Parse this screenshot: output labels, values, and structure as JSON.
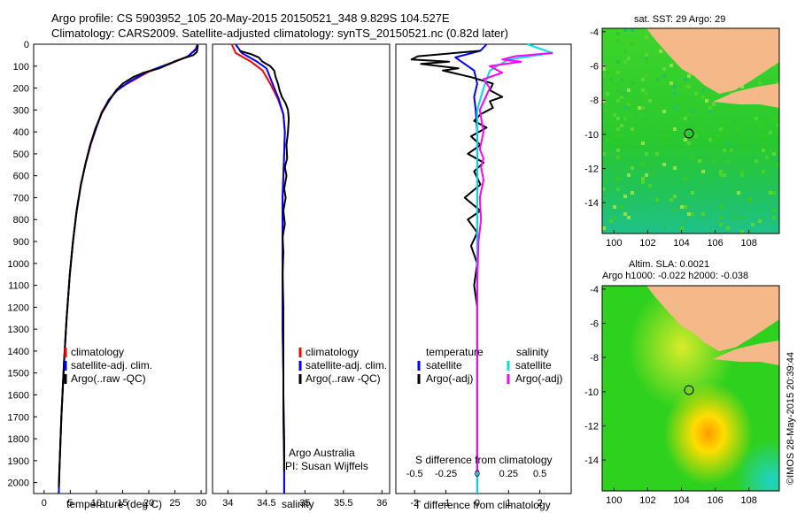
{
  "header": {
    "line1": "Argo profile: CS 5903952_105 20-May-2015 20150521_348 9.829S 104.527E",
    "line2": "Climatology: CARS2009. Satellite-adjusted climatology: synTS_20150521.nc (0.82d later)"
  },
  "colors": {
    "clim": "#ff0000",
    "sat": "#0000ff",
    "argo": "#000000",
    "sat_sal": "#00e0e0",
    "argo_sal": "#ff00ff",
    "land": "#f5b889",
    "map_green": "#2fd11f"
  },
  "depth_axis": {
    "ticks": [
      0,
      100,
      200,
      300,
      400,
      500,
      600,
      700,
      800,
      900,
      1000,
      1100,
      1200,
      1300,
      1400,
      1500,
      1600,
      1700,
      1800,
      1900,
      2000
    ],
    "ylim": [
      0,
      2050
    ]
  },
  "chart_data": [
    {
      "type": "line",
      "id": "temperature",
      "xlabel": "temperature (deg C)",
      "xlim": [
        -2,
        31
      ],
      "xticks": [
        0,
        5,
        10,
        15,
        20,
        25,
        30
      ],
      "legend": [
        "climatology",
        "satellite-adj. clim.",
        "Argo(..raw -QC)"
      ],
      "series": [
        {
          "name": "climatology",
          "points": [
            [
              29.3,
              0
            ],
            [
              29,
              20
            ],
            [
              27.5,
              55
            ],
            [
              24,
              90
            ],
            [
              20,
              125
            ],
            [
              17,
              165
            ],
            [
              14,
              205
            ],
            [
              12.5,
              250
            ],
            [
              11,
              310
            ],
            [
              10,
              380
            ],
            [
              9,
              450
            ],
            [
              8,
              540
            ],
            [
              7,
              640
            ],
            [
              6.2,
              760
            ],
            [
              5.5,
              900
            ],
            [
              4.9,
              1050
            ],
            [
              4.3,
              1250
            ],
            [
              3.8,
              1450
            ],
            [
              3.3,
              1700
            ],
            [
              2.9,
              1950
            ],
            [
              2.8,
              2050
            ]
          ]
        },
        {
          "name": "satellite-adj. clim.",
          "points": [
            [
              29.3,
              0
            ],
            [
              29,
              25
            ],
            [
              27.3,
              58
            ],
            [
              23.5,
              92
            ],
            [
              19.5,
              128
            ],
            [
              16.5,
              168
            ],
            [
              14,
              210
            ],
            [
              12.3,
              255
            ],
            [
              11,
              315
            ],
            [
              9.9,
              385
            ],
            [
              8.9,
              455
            ],
            [
              7.9,
              545
            ],
            [
              7,
              645
            ],
            [
              6.2,
              765
            ],
            [
              5.5,
              905
            ],
            [
              4.9,
              1055
            ],
            [
              4.3,
              1255
            ],
            [
              3.8,
              1455
            ],
            [
              3.3,
              1705
            ],
            [
              2.9,
              1955
            ],
            [
              2.8,
              2050
            ]
          ]
        },
        {
          "name": "Argo(..raw -QC)",
          "points": [
            [
              29.4,
              5
            ],
            [
              29.2,
              35
            ],
            [
              28.5,
              50
            ],
            [
              26.5,
              65
            ],
            [
              25,
              78
            ],
            [
              22,
              110
            ],
            [
              19,
              130
            ],
            [
              17,
              150
            ],
            [
              15,
              180
            ],
            [
              13.8,
              210
            ],
            [
              12.5,
              255
            ],
            [
              11,
              315
            ],
            [
              9.8,
              385
            ],
            [
              8.8,
              460
            ],
            [
              7.9,
              545
            ],
            [
              7,
              645
            ],
            [
              6.2,
              760
            ],
            [
              5.5,
              905
            ],
            [
              4.9,
              1050
            ],
            [
              4.3,
              1250
            ],
            [
              3.8,
              1450
            ],
            [
              3.3,
              1700
            ],
            [
              2.9,
              1950
            ],
            [
              2.8,
              2020
            ]
          ]
        }
      ]
    },
    {
      "type": "line",
      "id": "salinity",
      "xlabel": "salinity",
      "xlim": [
        33.8,
        36.1
      ],
      "xticks": [
        34,
        34.5,
        35,
        35.5,
        36
      ],
      "xticklabels": [
        "34",
        "34.5",
        "35",
        "35.5",
        "36"
      ],
      "legend": [
        "climatology",
        "satellite-adj. clim.",
        "Argo(..raw -QC)"
      ],
      "credit": [
        "Argo Australia",
        "PI: Susan Wijffels"
      ],
      "series": [
        {
          "name": "climatology",
          "points": [
            [
              34.05,
              0
            ],
            [
              34.1,
              40
            ],
            [
              34.3,
              80
            ],
            [
              34.45,
              120
            ],
            [
              34.55,
              180
            ],
            [
              34.65,
              250
            ],
            [
              34.72,
              320
            ],
            [
              34.74,
              400
            ],
            [
              34.73,
              500
            ],
            [
              34.72,
              600
            ],
            [
              34.71,
              700
            ],
            [
              34.71,
              900
            ],
            [
              34.71,
              1100
            ],
            [
              34.71,
              1300
            ],
            [
              34.72,
              1500
            ],
            [
              34.72,
              1700
            ],
            [
              34.73,
              1900
            ],
            [
              34.73,
              2050
            ]
          ]
        },
        {
          "name": "satellite-adj. clim.",
          "points": [
            [
              34.1,
              0
            ],
            [
              34.18,
              40
            ],
            [
              34.38,
              80
            ],
            [
              34.5,
              110
            ],
            [
              34.58,
              180
            ],
            [
              34.66,
              250
            ],
            [
              34.72,
              320
            ],
            [
              34.74,
              400
            ],
            [
              34.73,
              500
            ],
            [
              34.72,
              600
            ],
            [
              34.71,
              700
            ],
            [
              34.71,
              900
            ],
            [
              34.71,
              1100
            ],
            [
              34.71,
              1300
            ],
            [
              34.72,
              1500
            ],
            [
              34.72,
              1700
            ],
            [
              34.73,
              1900
            ],
            [
              34.73,
              2050
            ]
          ]
        },
        {
          "name": "Argo(..raw -QC)",
          "points": [
            [
              34.15,
              30
            ],
            [
              34.3,
              45
            ],
            [
              34.4,
              60
            ],
            [
              34.45,
              80
            ],
            [
              34.55,
              100
            ],
            [
              34.6,
              120
            ],
            [
              34.62,
              150
            ],
            [
              34.65,
              180
            ],
            [
              34.67,
              210
            ],
            [
              34.7,
              240
            ],
            [
              34.75,
              270
            ],
            [
              34.78,
              300
            ],
            [
              34.79,
              340
            ],
            [
              34.78,
              400
            ],
            [
              34.76,
              460
            ],
            [
              34.77,
              520
            ],
            [
              34.74,
              560
            ],
            [
              34.76,
              600
            ],
            [
              34.73,
              660
            ],
            [
              34.75,
              700
            ],
            [
              34.72,
              760
            ],
            [
              34.74,
              820
            ],
            [
              34.71,
              880
            ],
            [
              34.72,
              950
            ],
            [
              34.71,
              1050
            ],
            [
              34.72,
              1200
            ],
            [
              34.72,
              1400
            ],
            [
              34.72,
              1600
            ],
            [
              34.73,
              1800
            ],
            [
              34.73,
              1950
            ]
          ]
        }
      ]
    },
    {
      "type": "line",
      "id": "difference",
      "xlim": [
        -2.6,
        3.0
      ],
      "xlabel": "T difference from climatology",
      "xticks": [
        -2,
        -1,
        0,
        1,
        2
      ],
      "xticklabels": [
        "-2",
        "-1",
        "0",
        "1",
        "2"
      ],
      "top_label": "S difference from climatology",
      "top_ticks": [
        -0.5,
        -0.25,
        0,
        0.25,
        0.5
      ],
      "top_ticklabels": [
        "-0.5",
        "-0.25",
        "0",
        "0.25",
        "0.5"
      ],
      "legend_temp_title": "temperature",
      "legend_sal_title": "salinity",
      "legend": [
        "satellite",
        "Argo(-adj)",
        "satellite",
        "Argo(-adj)"
      ],
      "series": [
        {
          "name": "T satellite",
          "points": [
            [
              0.3,
              0
            ],
            [
              0.1,
              30
            ],
            [
              -0.7,
              60
            ],
            [
              -0.4,
              90
            ],
            [
              -0.1,
              120
            ],
            [
              0,
              180
            ],
            [
              -0.1,
              240
            ],
            [
              -0.05,
              300
            ],
            [
              0,
              400
            ],
            [
              0,
              600
            ],
            [
              0,
              900
            ],
            [
              0,
              1200
            ],
            [
              0,
              1600
            ],
            [
              0,
              2050
            ]
          ]
        },
        {
          "name": "T Argo(-adj)",
          "points": [
            [
              0.1,
              30
            ],
            [
              -1.9,
              55
            ],
            [
              -2.1,
              70
            ],
            [
              -0.9,
              80
            ],
            [
              -1.8,
              90
            ],
            [
              -0.6,
              110
            ],
            [
              -1.1,
              120
            ],
            [
              -0.2,
              150
            ],
            [
              0.5,
              180
            ],
            [
              0.4,
              210
            ],
            [
              0.8,
              240
            ],
            [
              0.4,
              260
            ],
            [
              0.5,
              290
            ],
            [
              0.1,
              320
            ],
            [
              -0.1,
              350
            ],
            [
              0.3,
              380
            ],
            [
              -0.2,
              420
            ],
            [
              0.1,
              460
            ],
            [
              -0.3,
              500
            ],
            [
              0.2,
              540
            ],
            [
              -0.1,
              580
            ],
            [
              0.1,
              640
            ],
            [
              -0.4,
              700
            ],
            [
              0.1,
              760
            ],
            [
              -0.3,
              800
            ],
            [
              0,
              860
            ],
            [
              -0.2,
              920
            ],
            [
              0,
              1000
            ],
            [
              -0.1,
              1100
            ],
            [
              0,
              1200
            ],
            [
              0,
              1400
            ],
            [
              0,
              1600
            ],
            [
              0,
              1800
            ],
            [
              0,
              1950
            ]
          ]
        },
        {
          "name": "S satellite",
          "points": [
            [
              0.4,
              0
            ],
            [
              0.6,
              40
            ],
            [
              0.25,
              70
            ],
            [
              0.1,
              120
            ],
            [
              0.05,
              200
            ],
            [
              0,
              300
            ],
            [
              0,
              500
            ],
            [
              0,
              800
            ],
            [
              0,
              1100
            ],
            [
              0,
              1400
            ],
            [
              0,
              1700
            ],
            [
              0,
              2050
            ]
          ]
        },
        {
          "name": "S Argo(-adj)",
          "points": [
            [
              0.6,
              40
            ],
            [
              0.3,
              55
            ],
            [
              0.2,
              70
            ],
            [
              0.35,
              80
            ],
            [
              0.1,
              100
            ],
            [
              0.2,
              130
            ],
            [
              0.05,
              160
            ],
            [
              0.1,
              200
            ],
            [
              0.02,
              300
            ],
            [
              0.05,
              400
            ],
            [
              0.02,
              480
            ],
            [
              0.05,
              520
            ],
            [
              0.03,
              560
            ],
            [
              0.05,
              620
            ],
            [
              0.02,
              700
            ],
            [
              0.03,
              800
            ],
            [
              0.01,
              900
            ],
            [
              0,
              1100
            ],
            [
              0,
              1400
            ],
            [
              0,
              1700
            ],
            [
              0,
              1950
            ]
          ]
        }
      ]
    }
  ],
  "maps": {
    "sst": {
      "title": "sat. SST: 29 Argo: 29",
      "xticks": [
        "100",
        "102",
        "104",
        "106",
        "108"
      ],
      "yticks": [
        "-4",
        "-6",
        "-8",
        "-10",
        "-12",
        "-14"
      ]
    },
    "sla": {
      "title1": "Altim. SLA: 0.0021",
      "title2": "Argo h1000: -0.022 h2000: -0.038",
      "xticks": [
        "100",
        "102",
        "104",
        "106",
        "108"
      ],
      "yticks": [
        "-4",
        "-6",
        "-8",
        "-10",
        "-12",
        "-14"
      ]
    }
  },
  "stamp": "©IMOS 28-May-2015 20:39:44"
}
